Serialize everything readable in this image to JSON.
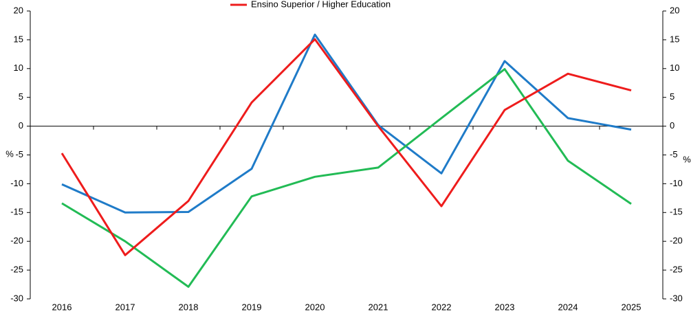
{
  "chart_data": {
    "type": "line",
    "categories": [
      "2016",
      "2017",
      "2018",
      "2019",
      "2020",
      "2021",
      "2022",
      "2023",
      "2024",
      "2025"
    ],
    "series": [
      {
        "color": "#1f7bc8",
        "values": [
          -10.1,
          -15.0,
          -14.9,
          -7.4,
          15.9,
          0.2,
          -8.2,
          11.3,
          1.4,
          -0.6
        ]
      },
      {
        "color": "#22bb55",
        "values": [
          -13.4,
          -20.0,
          -27.9,
          -12.2,
          -8.8,
          -7.2,
          1.4,
          9.9,
          -6.0,
          -13.5
        ]
      },
      {
        "name": "Ensino Superior / Higher Education",
        "color": "#ee1c1c",
        "values": [
          -4.7,
          -22.4,
          -13.0,
          4.1,
          15.1,
          0.0,
          -13.9,
          2.8,
          9.1,
          6.2
        ]
      }
    ],
    "y_label": "%",
    "y2_label": "%",
    "ylim": [
      -30,
      20
    ],
    "yticks": [
      -30,
      -25,
      -20,
      -15,
      -10,
      -5,
      0,
      5,
      10,
      15,
      20
    ],
    "y2lim": [
      -30,
      20
    ],
    "y2ticks": [
      -30,
      -25,
      -20,
      -15,
      -10,
      -5,
      0,
      5,
      10,
      15,
      20
    ],
    "legend": "top",
    "grid": false
  }
}
